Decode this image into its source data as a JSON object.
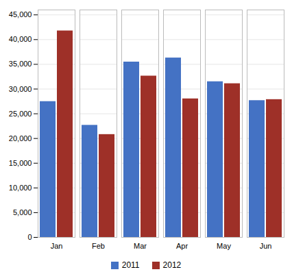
{
  "chart_data": {
    "type": "bar",
    "categories": [
      "Jan",
      "Feb",
      "Mar",
      "Apr",
      "May",
      "Jun"
    ],
    "series": [
      {
        "name": "2011",
        "color": "#4472C4",
        "values": [
          27474,
          22674,
          35472,
          36292,
          31491,
          27672
        ]
      },
      {
        "name": "2012",
        "color": "#9E3028",
        "values": [
          41767,
          20806,
          32633,
          28023,
          31090,
          27873
        ]
      }
    ],
    "ylim": [
      0,
      46000
    ],
    "yticks": [
      0,
      {
        "value": 5000,
        "label": "5,000"
      },
      {
        "value": 10000,
        "label": "10,000"
      },
      {
        "value": 15000,
        "label": "15,000"
      },
      {
        "value": 20000,
        "label": "20,000"
      },
      {
        "value": 25000,
        "label": "25,000"
      },
      {
        "value": 30000,
        "label": "30,000"
      },
      {
        "value": 35000,
        "label": "35,000"
      },
      {
        "value": 40000,
        "label": "40,000"
      },
      {
        "value": 45000,
        "label": "45,000"
      }
    ],
    "grid": true,
    "legend": "bottom"
  }
}
